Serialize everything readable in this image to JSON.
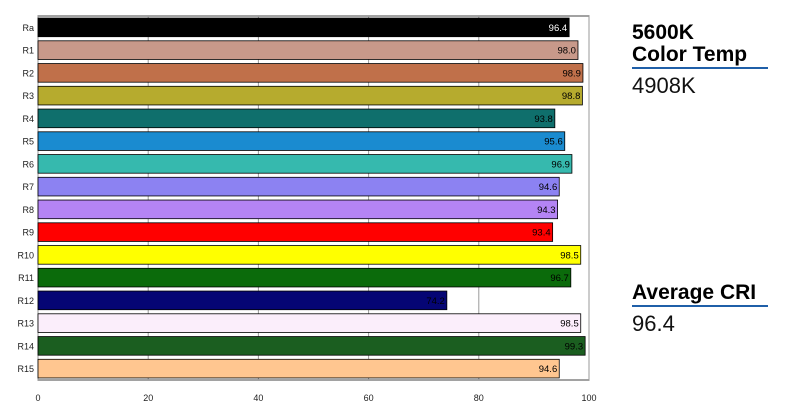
{
  "chart_data": {
    "type": "bar",
    "orientation": "horizontal",
    "categories": [
      "Ra",
      "R1",
      "R2",
      "R3",
      "R4",
      "R5",
      "R6",
      "R7",
      "R8",
      "R9",
      "R10",
      "R11",
      "R12",
      "R13",
      "R14",
      "R15"
    ],
    "values": [
      96.4,
      98.0,
      98.9,
      98.8,
      93.8,
      95.6,
      96.9,
      94.6,
      94.3,
      93.4,
      98.5,
      96.7,
      74.2,
      98.5,
      99.3,
      94.6
    ],
    "value_labels": [
      "96.4",
      "98.0",
      "98.9",
      "98.8",
      "93.8",
      "95.6",
      "96.9",
      "94.6",
      "94.3",
      "93.4",
      "98.5",
      "96.7",
      "74.2",
      "98.5",
      "99.3",
      "94.6"
    ],
    "colors": [
      "#000000",
      "#c8998a",
      "#c0704a",
      "#b6ab2e",
      "#0f6f6c",
      "#1a8bd0",
      "#36b9ae",
      "#8c82f2",
      "#b484f4",
      "#ff0000",
      "#ffff00",
      "#0b6b0b",
      "#050574",
      "#fbeefb",
      "#1b5e20",
      "#ffc690"
    ],
    "label_colors": [
      "#ffffff",
      "#000000",
      "#000000",
      "#000000",
      "#000000",
      "#000000",
      "#000000",
      "#000000",
      "#000000",
      "#000000",
      "#000000",
      "#000000",
      "#000000",
      "#000000",
      "#000000",
      "#000000"
    ],
    "xticks": [
      "0",
      "20",
      "40",
      "60",
      "80",
      "100"
    ],
    "xlim": [
      0,
      100
    ],
    "grid": true,
    "title": "",
    "xlabel": "",
    "ylabel": ""
  },
  "sidebar": {
    "color_temp": {
      "title_line1": "5600K",
      "title_line2": "Color Temp",
      "value": "4908K"
    },
    "average_cri": {
      "title": "Average CRI",
      "value": "96.4"
    },
    "rule_color": "#1f5fa8"
  }
}
